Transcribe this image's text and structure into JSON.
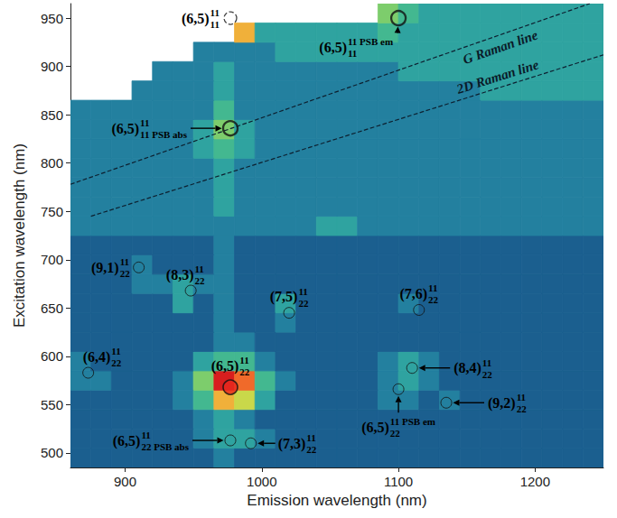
{
  "chart_data": {
    "type": "heatmap",
    "xlabel": "Emission wavelength (nm)",
    "ylabel": "Excitation wavelength (nm)",
    "xlim": [
      860,
      1250
    ],
    "ylim": [
      485,
      965
    ],
    "xticks": [
      900,
      1000,
      1100,
      1200
    ],
    "yticks": [
      500,
      550,
      600,
      650,
      700,
      750,
      800,
      850,
      900,
      950
    ],
    "grid": false,
    "heatmap": {
      "x_edges": [
        860,
        875,
        890,
        905,
        920,
        935,
        950,
        965,
        980,
        995,
        1010,
        1025,
        1040,
        1055,
        1070,
        1085,
        1100,
        1115,
        1130,
        1145,
        1160,
        1175,
        1190,
        1205,
        1220,
        1235,
        1250
      ],
      "y_edges": [
        485,
        505,
        525,
        545,
        565,
        585,
        605,
        625,
        645,
        665,
        685,
        705,
        725,
        745,
        765,
        785,
        805,
        825,
        845,
        865,
        885,
        905,
        925,
        945,
        965
      ],
      "zlim": [
        0,
        10
      ],
      "z": [
        [
          2,
          2,
          2,
          2,
          2,
          2,
          2,
          3,
          2,
          2,
          2,
          2,
          2,
          2,
          2,
          2,
          2,
          2,
          2,
          2,
          2,
          2,
          2,
          2,
          2,
          2
        ],
        [
          2,
          2,
          2,
          2,
          2,
          2,
          3,
          4,
          4,
          3,
          2,
          2,
          2,
          2,
          2,
          2,
          2,
          2,
          2,
          2,
          2,
          2,
          2,
          2,
          2,
          2
        ],
        [
          2,
          2,
          2,
          2,
          2,
          2,
          3,
          4,
          3,
          2,
          2,
          2,
          2,
          2,
          2,
          2,
          2,
          2,
          2,
          2,
          2,
          2,
          2,
          2,
          2,
          2
        ],
        [
          2,
          2,
          2,
          2,
          2,
          3,
          5,
          8,
          7,
          4,
          2,
          2,
          2,
          2,
          2,
          3,
          3,
          2,
          3,
          2,
          2,
          2,
          2,
          2,
          2,
          2
        ],
        [
          3,
          3,
          2,
          2,
          2,
          3,
          6,
          10,
          9,
          5,
          3,
          2,
          2,
          2,
          2,
          3,
          4,
          3,
          2,
          2,
          2,
          2,
          2,
          2,
          2,
          2
        ],
        [
          3,
          2,
          2,
          2,
          2,
          2,
          4,
          5,
          5,
          3,
          2,
          2,
          2,
          2,
          2,
          3,
          4,
          3,
          2,
          2,
          2,
          2,
          2,
          2,
          2,
          2
        ],
        [
          2,
          2,
          2,
          2,
          2,
          2,
          2,
          3,
          3,
          2,
          2,
          2,
          2,
          2,
          2,
          2,
          2,
          2,
          2,
          2,
          2,
          2,
          2,
          2,
          2,
          2
        ],
        [
          2,
          2,
          2,
          2,
          2,
          2,
          2,
          3,
          2,
          2,
          3,
          2,
          2,
          2,
          2,
          2,
          2,
          2,
          2,
          2,
          2,
          2,
          2,
          2,
          2,
          2
        ],
        [
          2,
          2,
          2,
          2,
          2,
          4,
          2,
          3,
          2,
          2,
          4,
          2,
          2,
          2,
          2,
          2,
          3,
          2,
          2,
          2,
          2,
          2,
          2,
          2,
          2,
          2
        ],
        [
          2,
          2,
          2,
          3,
          3,
          4,
          3,
          3,
          2,
          2,
          2,
          2,
          2,
          2,
          2,
          2,
          2,
          2,
          2,
          2,
          2,
          2,
          2,
          2,
          2,
          2
        ],
        [
          2,
          2,
          2,
          3,
          2,
          2,
          2,
          3,
          2,
          2,
          2,
          2,
          2,
          2,
          2,
          2,
          2,
          2,
          2,
          2,
          2,
          2,
          2,
          2,
          2,
          2
        ],
        [
          2,
          2,
          2,
          2,
          2,
          2,
          2,
          3,
          2,
          2,
          2,
          2,
          2,
          2,
          2,
          2,
          2,
          2,
          2,
          2,
          2,
          2,
          2,
          2,
          2,
          2
        ],
        [
          3,
          3,
          3,
          3,
          3,
          3,
          3,
          3,
          3,
          3,
          3,
          3,
          4,
          4,
          3,
          3,
          3,
          3,
          3,
          3,
          3,
          3,
          3,
          3,
          3,
          3
        ],
        [
          3,
          3,
          3,
          3,
          3,
          3,
          3,
          4,
          3,
          3,
          3,
          3,
          3,
          3,
          3,
          3,
          3,
          3,
          3,
          3,
          3,
          3,
          3,
          3,
          3,
          3
        ],
        [
          3,
          3,
          3,
          3,
          3,
          3,
          3,
          4,
          3,
          3,
          3,
          3,
          3,
          3,
          3,
          3,
          3,
          3,
          3,
          3,
          3,
          3,
          3,
          3,
          3,
          3
        ],
        [
          3,
          3,
          3,
          3,
          3,
          3,
          3,
          4,
          3,
          3,
          3,
          3,
          3,
          3,
          3,
          3,
          3,
          3,
          3,
          3,
          3,
          3,
          3,
          3,
          3,
          3
        ],
        [
          3,
          3,
          3,
          3,
          3,
          3,
          4,
          5,
          4,
          3,
          3,
          3,
          3,
          3,
          3,
          3,
          3,
          3,
          3,
          3,
          3,
          3,
          3,
          3,
          3,
          3
        ],
        [
          3,
          3,
          3,
          3,
          3,
          3,
          4,
          6,
          4,
          3,
          3,
          3,
          3,
          3,
          3,
          3,
          3,
          3,
          3,
          3,
          3,
          3,
          3,
          3,
          3,
          3
        ],
        [
          3,
          3,
          3,
          3,
          3,
          3,
          3,
          5,
          3,
          3,
          3,
          3,
          3,
          3,
          3,
          3,
          3,
          3,
          3,
          3,
          3,
          3,
          3,
          3,
          3,
          3
        ],
        [
          null,
          null,
          null,
          3,
          3,
          3,
          3,
          4,
          3,
          3,
          3,
          3,
          3,
          3,
          3,
          3,
          3,
          3,
          3,
          3,
          4,
          4,
          4,
          4,
          4,
          4
        ],
        [
          null,
          null,
          null,
          null,
          3,
          3,
          3,
          4,
          3,
          3,
          3,
          3,
          3,
          3,
          3,
          3,
          4,
          4,
          4,
          4,
          4,
          4,
          4,
          4,
          4,
          4
        ],
        [
          null,
          null,
          null,
          null,
          null,
          null,
          3,
          3,
          3,
          3,
          4,
          4,
          4,
          4,
          4,
          4,
          4,
          4,
          4,
          4,
          4,
          4,
          4,
          4,
          4,
          4
        ],
        [
          null,
          null,
          null,
          null,
          null,
          null,
          null,
          null,
          8,
          4,
          4,
          4,
          4,
          4,
          4,
          5,
          4,
          4,
          4,
          4,
          4,
          4,
          4,
          4,
          4,
          4
        ],
        [
          null,
          null,
          null,
          null,
          null,
          null,
          null,
          null,
          null,
          null,
          null,
          null,
          null,
          null,
          null,
          6,
          5,
          4,
          4,
          4,
          4,
          4,
          4,
          4,
          4,
          4
        ]
      ]
    },
    "raman_lines": [
      {
        "name": "G Raman line",
        "x": [
          860,
          1240
        ],
        "y": [
          778,
          965
        ],
        "line_style": "dashed"
      },
      {
        "name": "2D Raman line",
        "x": [
          875,
          1250
        ],
        "y": [
          745,
          912
        ],
        "line_style": "dashed"
      }
    ],
    "annotations": [
      {
        "label": "(6,5)",
        "sup": "11",
        "sub": "11",
        "x": 977,
        "y": 950,
        "marker": "dashed circle"
      },
      {
        "label": "(6,5)",
        "sup": "11 PSB em",
        "sub": "11",
        "x": 1100,
        "y": 950,
        "marker": "bold circle"
      },
      {
        "label": "(6,5)",
        "sup": "11",
        "sub": "11 PSB abs",
        "x": 977,
        "y": 836,
        "marker": "bold circle"
      },
      {
        "label": "(9,1)",
        "sup": "11",
        "sub": "22",
        "x": 910,
        "y": 692,
        "marker": "circle"
      },
      {
        "label": "(8,3)",
        "sup": "11",
        "sub": "22",
        "x": 948,
        "y": 668,
        "marker": "circle"
      },
      {
        "label": "(7,5)",
        "sup": "11",
        "sub": "22",
        "x": 1020,
        "y": 645,
        "marker": "circle"
      },
      {
        "label": "(7,6)",
        "sup": "11",
        "sub": "22",
        "x": 1115,
        "y": 648,
        "marker": "circle"
      },
      {
        "label": "(6,4)",
        "sup": "11",
        "sub": "22",
        "x": 873,
        "y": 583,
        "marker": "circle"
      },
      {
        "label": "(6,5)",
        "sup": "11",
        "sub": "22",
        "x": 977,
        "y": 568,
        "marker": "filled circle",
        "color": "#e8281e"
      },
      {
        "label": "(8,4)",
        "sup": "11",
        "sub": "22",
        "x": 1110,
        "y": 588,
        "marker": "circle"
      },
      {
        "label": "(9,2)",
        "sup": "11",
        "sub": "22",
        "x": 1135,
        "y": 552,
        "marker": "circle"
      },
      {
        "label": "(6,5)",
        "sup": "11 PSB em",
        "sub": "22",
        "x": 1100,
        "y": 566,
        "marker": "circle"
      },
      {
        "label": "(6,5)",
        "sup": "11",
        "sub": "22 PSB abs",
        "x": 977,
        "y": 513,
        "marker": "circle"
      },
      {
        "label": "(7,3)",
        "sup": "11",
        "sub": "22",
        "x": 992,
        "y": 510,
        "marker": "circle"
      }
    ]
  }
}
